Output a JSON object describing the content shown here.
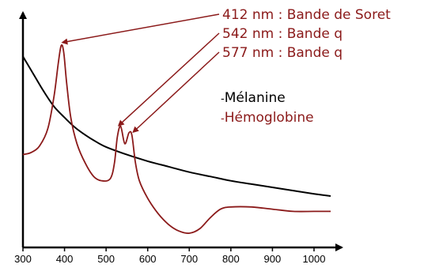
{
  "chart_data": {
    "type": "line",
    "title": "",
    "xlabel": "",
    "ylabel": "",
    "xlim": [
      300,
      1050
    ],
    "ylim": [
      0,
      100
    ],
    "x_ticks": [
      "300",
      "400",
      "500",
      "600",
      "700",
      "800",
      "900",
      "1000"
    ],
    "x_tick_values": [
      300,
      400,
      500,
      600,
      700,
      800,
      900,
      1000
    ],
    "grid": false,
    "legend_position": "top-right",
    "series": [
      {
        "name": "Mélanine",
        "color": "#000000",
        "x": [
          300,
          325,
          350,
          375,
          400,
          425,
          450,
          475,
          500,
          550,
          600,
          650,
          700,
          750,
          800,
          850,
          900,
          950,
          1000,
          1040
        ],
        "y": [
          85,
          77,
          69,
          62,
          57,
          52.5,
          49,
          46,
          43.5,
          40,
          37,
          34.5,
          32,
          30,
          28,
          26.5,
          25,
          23.5,
          22,
          21
        ]
      },
      {
        "name": "Hémoglobine",
        "color": "#8b1a1a",
        "x": [
          300,
          320,
          340,
          360,
          375,
          385,
          392,
          398,
          405,
          415,
          430,
          450,
          470,
          490,
          510,
          520,
          527,
          535,
          545,
          555,
          562,
          570,
          580,
          600,
          625,
          650,
          675,
          700,
          725,
          750,
          775,
          800,
          850,
          900,
          950,
          1000,
          1040
        ],
        "y": [
          40,
          41,
          44,
          52,
          67,
          82,
          90,
          87,
          73,
          57,
          45,
          36,
          30,
          28,
          29,
          36,
          48,
          53,
          45,
          50,
          49,
          37,
          28,
          20,
          13,
          8,
          5,
          4,
          6,
          11,
          15,
          16,
          16,
          15,
          14,
          14,
          14
        ]
      }
    ],
    "annotations": [
      {
        "text": "412 nm : Bande de Soret",
        "target_x": 392,
        "target_y": 90
      },
      {
        "text": "542 nm : Bande q",
        "target_x": 527,
        "target_y": 52
      },
      {
        "text": "577 nm : Bande q",
        "target_x": 562,
        "target_y": 49
      }
    ],
    "legend": [
      {
        "label": "Mélanine",
        "color": "#000000"
      },
      {
        "label": "Hémoglobine",
        "color": "#8b1a1a"
      }
    ]
  }
}
